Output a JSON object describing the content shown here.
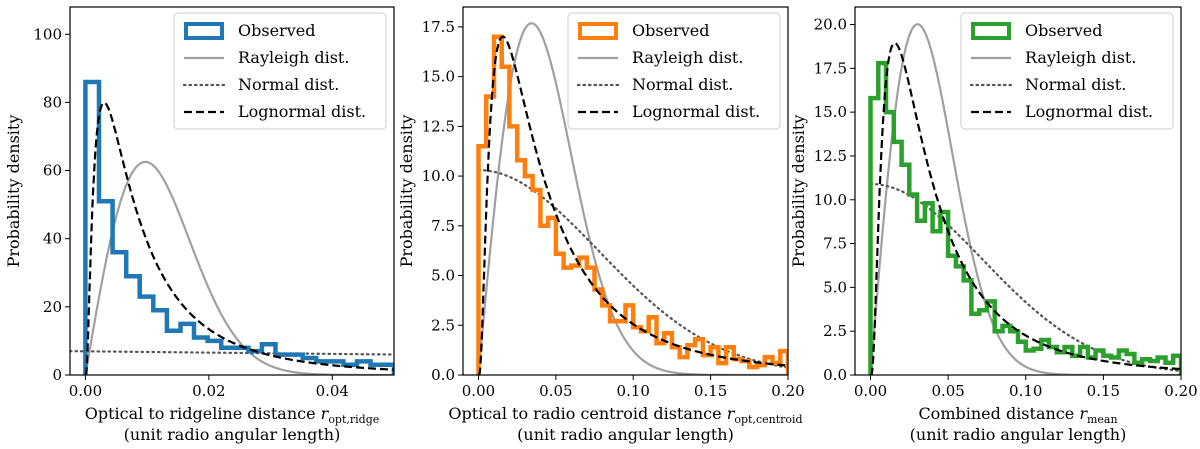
{
  "figure": {
    "colors": {
      "frame": "#000000",
      "rayleigh": "#a0a0a0",
      "normal": "#555555",
      "lognormal": "#000000"
    }
  },
  "chart_data": [
    {
      "type": "line",
      "histogram_color": "#1f77b4",
      "xlabel_line1": "Optical to ridgeline distance ",
      "xlabel_var": "r",
      "xlabel_sub": "opt,ridge",
      "xlabel_line2": "(unit radio angular length)",
      "ylabel": "Probability density",
      "xlim": [
        -0.0025,
        0.05
      ],
      "ylim": [
        0,
        108
      ],
      "xticks": [
        0.0,
        0.02,
        0.04
      ],
      "xtick_labels": [
        "0.00",
        "0.02",
        "0.04"
      ],
      "yticks": [
        0,
        20,
        40,
        60,
        80,
        100
      ],
      "ytick_labels": [
        "0",
        "20",
        "40",
        "60",
        "80",
        "100"
      ],
      "legend": [
        "Observed",
        "Rayleigh dist.",
        "Normal dist.",
        "Lognormal dist."
      ],
      "legend_position": "top-right",
      "series": [
        {
          "name": "Observed",
          "kind": "step_histogram",
          "edges": [
            0.0,
            0.0022,
            0.0044,
            0.0066,
            0.0088,
            0.011,
            0.0132,
            0.0154,
            0.0176,
            0.0198,
            0.022,
            0.0242,
            0.0264,
            0.0286,
            0.0308,
            0.033,
            0.0352,
            0.0374,
            0.0396,
            0.0418,
            0.044,
            0.0462,
            0.0484,
            0.05
          ],
          "values": [
            86,
            51,
            36,
            29,
            23,
            19,
            13,
            15,
            11,
            10,
            8,
            8,
            7,
            9,
            6,
            6,
            5,
            4,
            4,
            3,
            4,
            3,
            3
          ]
        },
        {
          "name": "Rayleigh dist.",
          "kind": "rayleigh",
          "sigma": 0.0097
        },
        {
          "name": "Normal dist.",
          "kind": "normal_linear",
          "y0": 7.0,
          "y_end": 6.0
        },
        {
          "name": "Lognormal dist.",
          "kind": "lognormal",
          "mu": -4.8,
          "s": 1.0
        }
      ]
    },
    {
      "type": "line",
      "histogram_color": "#ff7f0e",
      "xlabel_line1": "Optical to radio centroid distance ",
      "xlabel_var": "r",
      "xlabel_sub": "opt,centroid",
      "xlabel_line2": "(unit radio angular length)",
      "ylabel": "Probability density",
      "xlim": [
        -0.01,
        0.2
      ],
      "ylim": [
        0,
        18.5
      ],
      "xticks": [
        0.0,
        0.05,
        0.1,
        0.15,
        0.2
      ],
      "xtick_labels": [
        "0.00",
        "0.05",
        "0.10",
        "0.15",
        "0.20"
      ],
      "yticks": [
        0,
        2.5,
        5,
        7.5,
        10,
        12.5,
        15,
        17.5
      ],
      "ytick_labels": [
        "0.0",
        "2.5",
        "5.0",
        "7.5",
        "10.0",
        "12.5",
        "15.0",
        "17.5"
      ],
      "legend": [
        "Observed",
        "Rayleigh dist.",
        "Normal dist.",
        "Lognormal dist."
      ],
      "legend_position": "top-right",
      "series": [
        {
          "name": "Observed",
          "kind": "step_histogram",
          "edges": [
            0.0,
            0.005,
            0.01,
            0.015,
            0.02,
            0.025,
            0.03,
            0.035,
            0.04,
            0.045,
            0.05,
            0.055,
            0.06,
            0.065,
            0.07,
            0.075,
            0.08,
            0.085,
            0.09,
            0.095,
            0.1,
            0.105,
            0.11,
            0.115,
            0.12,
            0.125,
            0.13,
            0.135,
            0.14,
            0.145,
            0.15,
            0.155,
            0.16,
            0.165,
            0.17,
            0.175,
            0.18,
            0.185,
            0.19,
            0.195,
            0.2
          ],
          "values": [
            11.5,
            14.0,
            17.0,
            15.5,
            12.5,
            10.8,
            10.0,
            9.3,
            7.5,
            7.9,
            6.1,
            5.4,
            5.5,
            5.9,
            5.4,
            4.3,
            3.5,
            2.7,
            2.7,
            3.5,
            2.4,
            2.2,
            2.9,
            1.6,
            2.1,
            1.4,
            0.9,
            1.5,
            1.8,
            1.0,
            1.4,
            0.6,
            1.4,
            0.8,
            0.7,
            0.4,
            0.5,
            0.9,
            0.6,
            1.2
          ]
        },
        {
          "name": "Rayleigh dist.",
          "kind": "rayleigh",
          "sigma": 0.0343
        },
        {
          "name": "Normal dist.",
          "kind": "normal",
          "mu": 0.0,
          "sd": 0.0776,
          "peak": 10.3
        },
        {
          "name": "Lognormal dist.",
          "kind": "lognormal",
          "mu": -3.25,
          "s": 0.95
        }
      ]
    },
    {
      "type": "line",
      "histogram_color": "#2ca02c",
      "xlabel_line1": "Combined distance ",
      "xlabel_var": "r",
      "xlabel_sub": "mean",
      "xlabel_line2": "(unit radio angular length)",
      "ylabel": "Probability density",
      "xlim": [
        -0.01,
        0.2
      ],
      "ylim": [
        0,
        21
      ],
      "xticks": [
        0.0,
        0.05,
        0.1,
        0.15,
        0.2
      ],
      "xtick_labels": [
        "0.00",
        "0.05",
        "0.10",
        "0.15",
        "0.20"
      ],
      "yticks": [
        0,
        2.5,
        5,
        7.5,
        10,
        12.5,
        15,
        17.5,
        20
      ],
      "ytick_labels": [
        "0.0",
        "2.5",
        "5.0",
        "7.5",
        "10.0",
        "12.5",
        "15.0",
        "17.5",
        "20.0"
      ],
      "legend": [
        "Observed",
        "Rayleigh dist.",
        "Normal dist.",
        "Lognormal dist."
      ],
      "legend_position": "top-right",
      "series": [
        {
          "name": "Observed",
          "kind": "step_histogram",
          "edges": [
            0.0,
            0.005,
            0.01,
            0.015,
            0.02,
            0.025,
            0.03,
            0.035,
            0.04,
            0.045,
            0.05,
            0.055,
            0.06,
            0.065,
            0.07,
            0.075,
            0.08,
            0.085,
            0.09,
            0.095,
            0.1,
            0.105,
            0.11,
            0.115,
            0.12,
            0.125,
            0.13,
            0.135,
            0.14,
            0.145,
            0.15,
            0.155,
            0.16,
            0.165,
            0.17,
            0.175,
            0.18,
            0.185,
            0.19,
            0.195,
            0.2
          ],
          "values": [
            15.8,
            17.8,
            15.0,
            13.3,
            12.0,
            10.3,
            8.8,
            9.8,
            8.2,
            9.3,
            6.8,
            6.2,
            5.4,
            3.5,
            3.7,
            4.2,
            2.5,
            2.8,
            2.5,
            1.9,
            1.4,
            1.5,
            2.0,
            1.6,
            1.3,
            1.6,
            1.1,
            1.6,
            1.0,
            1.4,
            1.1,
            1.0,
            1.4,
            1.2,
            0.7,
            0.9,
            0.8,
            1.0,
            0.7,
            1.1
          ]
        },
        {
          "name": "Rayleigh dist.",
          "kind": "rayleigh",
          "sigma": 0.0303
        },
        {
          "name": "Normal dist.",
          "kind": "normal",
          "mu": 0.0,
          "sd": 0.072,
          "peak": 10.9
        },
        {
          "name": "Lognormal dist.",
          "kind": "lognormal",
          "mu": -3.35,
          "s": 0.9
        }
      ]
    }
  ]
}
